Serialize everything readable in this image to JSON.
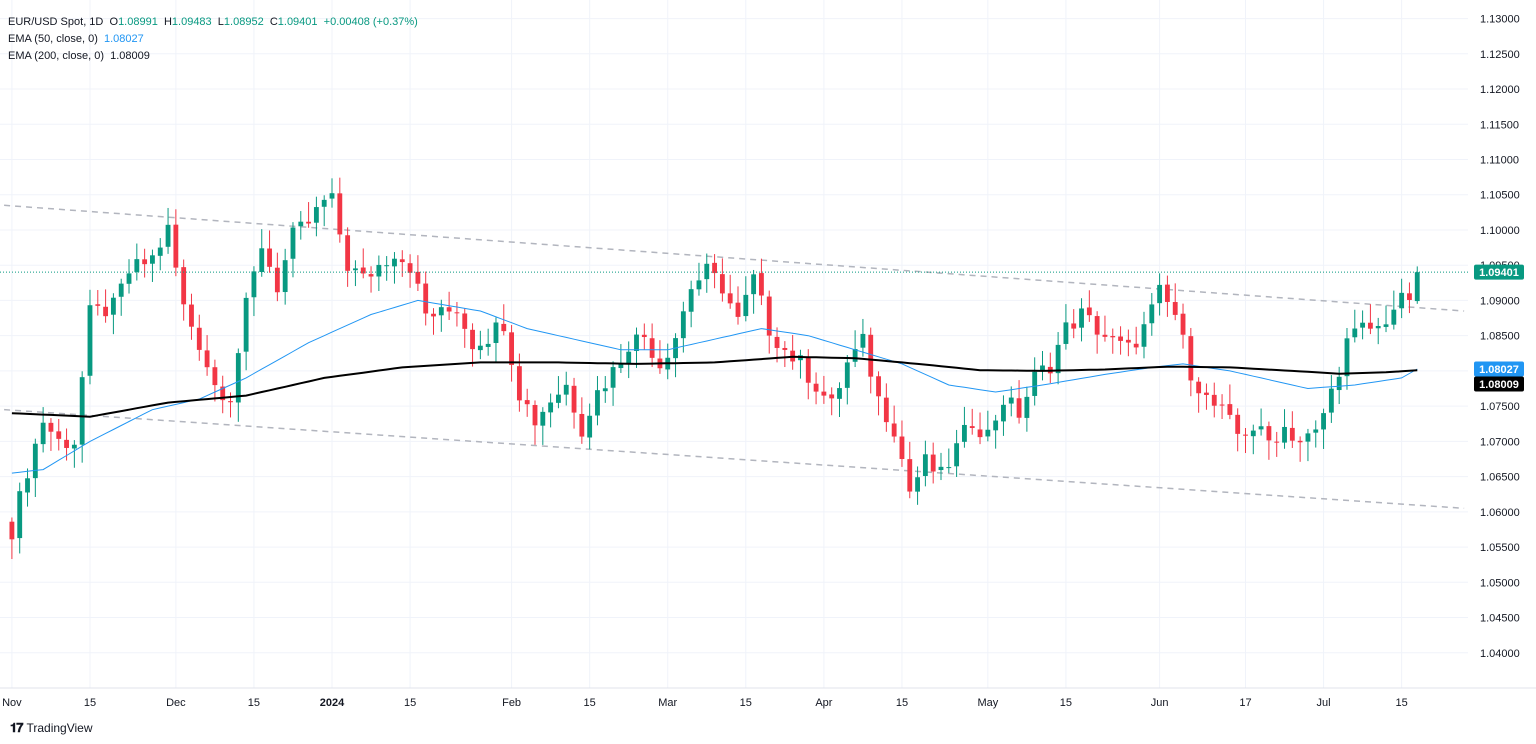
{
  "header": {
    "symbol": "EUR/USD Spot, 1D",
    "o_label": "O",
    "o": "1.08991",
    "h_label": "H",
    "h": "1.09483",
    "l_label": "L",
    "l": "1.08952",
    "c_label": "C",
    "c": "1.09401",
    "change": "+0.00408 (+0.37%)",
    "ema50_label": "EMA (50, close, 0)",
    "ema50_value": "1.08027",
    "ema200_label": "EMA (200, close, 0)",
    "ema200_value": "1.08009"
  },
  "branding": {
    "logo_text": "TradingView"
  },
  "colors": {
    "up": "#089981",
    "down": "#f23645",
    "ema50": "#2196f3",
    "ema200": "#000000",
    "trendline": "#b2b5be",
    "price_line": "#089981"
  },
  "chart_data": {
    "type": "candlestick",
    "title": "EUR/USD Spot, 1D",
    "y_range": [
      1.035,
      1.1315
    ],
    "y_ticks": [
      "1.13000",
      "1.12500",
      "1.12000",
      "1.11500",
      "1.11000",
      "1.10500",
      "1.10000",
      "1.09500",
      "1.09000",
      "1.08500",
      "1.08000",
      "1.07500",
      "1.07000",
      "1.06500",
      "1.06000",
      "1.05500",
      "1.05000",
      "1.04500",
      "1.04000"
    ],
    "x_ticks": [
      {
        "label": "Nov",
        "idx": 0
      },
      {
        "label": "15",
        "idx": 10
      },
      {
        "label": "Dec",
        "idx": 21
      },
      {
        "label": "15",
        "idx": 31
      },
      {
        "label": "2024",
        "idx": 41
      },
      {
        "label": "15",
        "idx": 51
      },
      {
        "label": "Feb",
        "idx": 64
      },
      {
        "label": "15",
        "idx": 74
      },
      {
        "label": "Mar",
        "idx": 84
      },
      {
        "label": "15",
        "idx": 94
      },
      {
        "label": "Apr",
        "idx": 104
      },
      {
        "label": "15",
        "idx": 114
      },
      {
        "label": "May",
        "idx": 125
      },
      {
        "label": "15",
        "idx": 135
      },
      {
        "label": "Jun",
        "idx": 147
      },
      {
        "label": "17",
        "idx": 158
      },
      {
        "label": "Jul",
        "idx": 168
      },
      {
        "label": "15",
        "idx": 178
      }
    ],
    "x_slots": 187,
    "close_anchors": [
      [
        0,
        1.0575
      ],
      [
        2,
        1.066
      ],
      [
        4,
        1.073
      ],
      [
        6,
        1.07
      ],
      [
        8,
        1.07
      ],
      [
        10,
        1.088
      ],
      [
        13,
        1.089
      ],
      [
        15,
        1.094
      ],
      [
        18,
        1.096
      ],
      [
        20,
        1.1
      ],
      [
        22,
        1.089
      ],
      [
        24,
        1.084
      ],
      [
        26,
        1.078
      ],
      [
        28,
        1.0765
      ],
      [
        30,
        1.089
      ],
      [
        32,
        1.098
      ],
      [
        34,
        1.092
      ],
      [
        36,
        1.099
      ],
      [
        38,
        1.101
      ],
      [
        40,
        1.104
      ],
      [
        41,
        1.104
      ],
      [
        43,
        1.095
      ],
      [
        45,
        1.093
      ],
      [
        47,
        1.095
      ],
      [
        49,
        1.097
      ],
      [
        51,
        1.095
      ],
      [
        53,
        1.088
      ],
      [
        55,
        1.088
      ],
      [
        57,
        1.089
      ],
      [
        59,
        1.084
      ],
      [
        61,
        1.085
      ],
      [
        63,
        1.087
      ],
      [
        65,
        1.077
      ],
      [
        67,
        1.073
      ],
      [
        69,
        1.076
      ],
      [
        71,
        1.078
      ],
      [
        73,
        1.072
      ],
      [
        75,
        1.077
      ],
      [
        77,
        1.08
      ],
      [
        79,
        1.084
      ],
      [
        81,
        1.085
      ],
      [
        83,
        1.081
      ],
      [
        85,
        1.085
      ],
      [
        87,
        1.092
      ],
      [
        89,
        1.094
      ],
      [
        91,
        1.092
      ],
      [
        93,
        1.087
      ],
      [
        95,
        1.093
      ],
      [
        97,
        1.086
      ],
      [
        99,
        1.083
      ],
      [
        101,
        1.081
      ],
      [
        103,
        1.078
      ],
      [
        105,
        1.075
      ],
      [
        107,
        1.081
      ],
      [
        109,
        1.084
      ],
      [
        111,
        1.076
      ],
      [
        113,
        1.072
      ],
      [
        115,
        1.063
      ],
      [
        117,
        1.067
      ],
      [
        119,
        1.065
      ],
      [
        121,
        1.069
      ],
      [
        123,
        1.073
      ],
      [
        125,
        1.071
      ],
      [
        127,
        1.076
      ],
      [
        129,
        1.074
      ],
      [
        131,
        1.079
      ],
      [
        133,
        1.081
      ],
      [
        135,
        1.086
      ],
      [
        137,
        1.088
      ],
      [
        139,
        1.086
      ],
      [
        141,
        1.084
      ],
      [
        143,
        1.083
      ],
      [
        145,
        1.086
      ],
      [
        147,
        1.091
      ],
      [
        149,
        1.088
      ],
      [
        151,
        1.08
      ],
      [
        153,
        1.076
      ],
      [
        155,
        1.074
      ],
      [
        157,
        1.071
      ],
      [
        159,
        1.072
      ],
      [
        161,
        1.07
      ],
      [
        163,
        1.072
      ],
      [
        165,
        1.07
      ],
      [
        167,
        1.071
      ],
      [
        169,
        1.077
      ],
      [
        171,
        1.084
      ],
      [
        173,
        1.086
      ],
      [
        175,
        1.086
      ],
      [
        177,
        1.089
      ],
      [
        179,
        1.0905
      ],
      [
        180,
        1.09401
      ]
    ],
    "ema50_anchors": [
      [
        0,
        1.0655
      ],
      [
        4,
        1.066
      ],
      [
        10,
        1.07
      ],
      [
        18,
        1.0745
      ],
      [
        24,
        1.076
      ],
      [
        30,
        1.079
      ],
      [
        38,
        1.084
      ],
      [
        46,
        1.088
      ],
      [
        52,
        1.09
      ],
      [
        60,
        1.0885
      ],
      [
        66,
        1.086
      ],
      [
        72,
        1.0845
      ],
      [
        78,
        1.083
      ],
      [
        84,
        1.083
      ],
      [
        90,
        1.0845
      ],
      [
        96,
        1.086
      ],
      [
        102,
        1.085
      ],
      [
        108,
        1.083
      ],
      [
        114,
        1.081
      ],
      [
        120,
        1.078
      ],
      [
        126,
        1.077
      ],
      [
        132,
        1.078
      ],
      [
        140,
        1.0795
      ],
      [
        146,
        1.0805
      ],
      [
        150,
        1.081
      ],
      [
        156,
        1.08
      ],
      [
        162,
        1.0785
      ],
      [
        166,
        1.0775
      ],
      [
        172,
        1.078
      ],
      [
        178,
        1.079
      ],
      [
        180,
        1.08027
      ]
    ],
    "ema200_anchors": [
      [
        0,
        1.074
      ],
      [
        10,
        1.0735
      ],
      [
        20,
        1.0755
      ],
      [
        30,
        1.0765
      ],
      [
        40,
        1.079
      ],
      [
        50,
        1.0805
      ],
      [
        60,
        1.0812
      ],
      [
        70,
        1.0812
      ],
      [
        80,
        1.081
      ],
      [
        90,
        1.0812
      ],
      [
        100,
        1.082
      ],
      [
        108,
        1.0818
      ],
      [
        116,
        1.081
      ],
      [
        124,
        1.0801
      ],
      [
        132,
        1.08
      ],
      [
        140,
        1.0802
      ],
      [
        148,
        1.0806
      ],
      [
        156,
        1.0805
      ],
      [
        164,
        1.08
      ],
      [
        170,
        1.0796
      ],
      [
        176,
        1.0798
      ],
      [
        180,
        1.08009
      ]
    ],
    "trendlines": [
      {
        "start": [
          -1,
          1.1035
        ],
        "end": [
          186,
          1.0885
        ]
      },
      {
        "start": [
          -1,
          1.0745
        ],
        "end": [
          186,
          1.0605
        ]
      }
    ],
    "last_price": "1.09401",
    "price_labels": [
      {
        "text": "1.09401",
        "value": 1.09401,
        "color": "#089981"
      },
      {
        "text": "1.08027",
        "value": 1.08027,
        "color": "#2196f3"
      },
      {
        "text": "1.08009",
        "value": 1.08009,
        "color": "#000000"
      }
    ]
  }
}
